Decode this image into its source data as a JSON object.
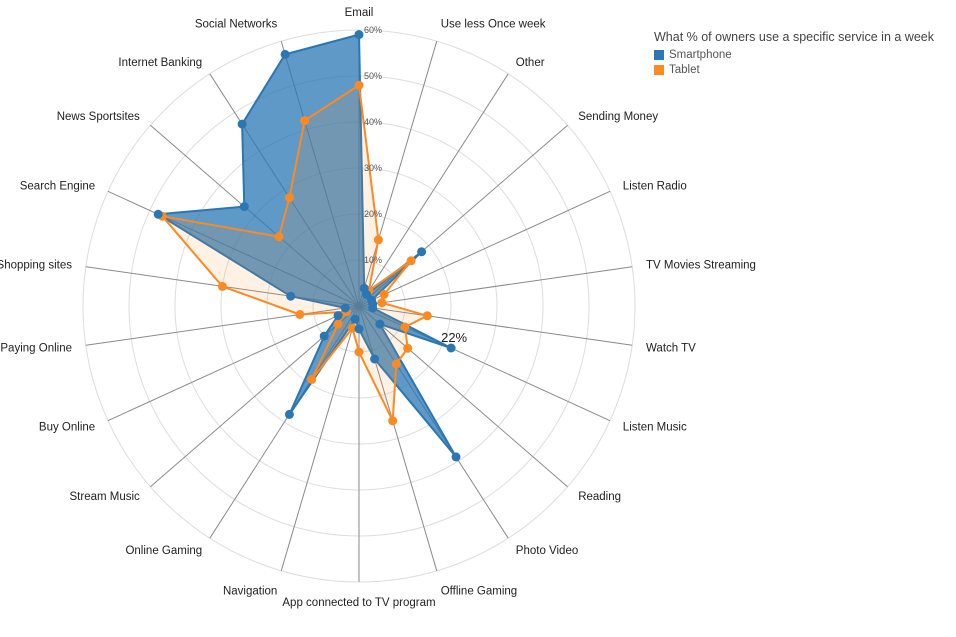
{
  "chart_data": {
    "type": "radar",
    "legend_title": "What % of owners use a specific service in a week",
    "legend_position": "top-right",
    "categories": [
      "Email",
      "Use less Once week",
      "Other",
      "Sending Money",
      "Listen Radio",
      "TV Movies Streaming",
      "Watch TV",
      "Listen Music",
      "Reading",
      "Photo Video",
      "Offline Gaming",
      "App connected to TV program",
      "Navigation",
      "Online Gaming",
      "Stream Music",
      "Buy Online",
      "Paying Online",
      "View Shopping sites",
      "Search Engine",
      "News Sportsites",
      "Internet Banking",
      "Social Networks"
    ],
    "series": [
      {
        "name": "Smartphone",
        "color": "#2a77b4",
        "values": [
          59,
          4,
          3,
          18,
          3,
          3,
          3,
          22,
          6,
          39,
          12,
          5,
          3,
          28,
          10,
          5,
          3,
          15,
          48,
          33,
          47,
          57
        ]
      },
      {
        "name": "Tablet",
        "color": "#fb8a22",
        "values": [
          48,
          15,
          4,
          15,
          6,
          5,
          15,
          11,
          14,
          15,
          26,
          10,
          5,
          19,
          6,
          3,
          13,
          30,
          47,
          23,
          28,
          42
        ]
      }
    ],
    "rlim": [
      0,
      60
    ],
    "ticks": [
      "10%",
      "20%",
      "30%",
      "40%",
      "50%",
      "60%"
    ],
    "annotation": "22%",
    "annotation_index": 7,
    "annotation_series": 0
  }
}
